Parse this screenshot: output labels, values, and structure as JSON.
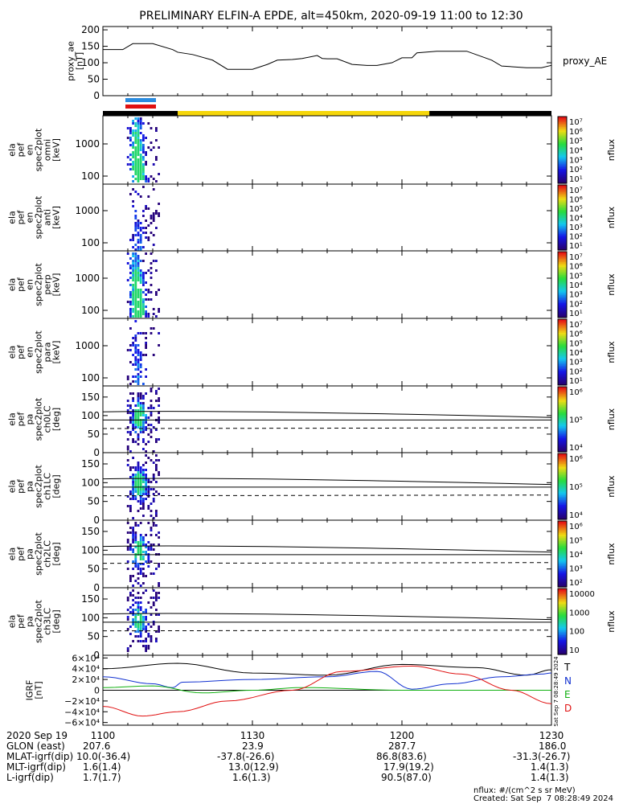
{
  "title": "PRELIMINARY ELFIN-A EPDE, alt=450km, 2020-09-19 11:00 to 12:30",
  "colors": {
    "bar_yellow": "#f5d60a",
    "bar_black": "#000000",
    "blue_mark": "#2a8ce0",
    "red_mark": "#e01010"
  },
  "chart_data": [
    {
      "type": "line",
      "ylabel": "proxy_ae\n[nT]",
      "legend": "proxy_AE",
      "yticks": [
        "0",
        "50",
        "100",
        "150",
        "200"
      ],
      "ylim": [
        0,
        210
      ],
      "x_minutes": [
        0,
        4,
        6,
        10,
        14,
        15,
        18,
        22,
        25,
        30,
        33,
        35,
        38,
        40,
        43,
        44,
        45,
        47,
        50,
        53,
        55,
        58,
        60,
        62,
        63,
        67,
        73,
        78,
        80,
        82,
        85,
        88,
        90
      ],
      "values": [
        140,
        140,
        158,
        158,
        140,
        132,
        125,
        108,
        80,
        80,
        95,
        108,
        110,
        113,
        122,
        113,
        112,
        112,
        95,
        92,
        92,
        100,
        115,
        115,
        130,
        135,
        135,
        108,
        90,
        88,
        85,
        85,
        92
      ]
    },
    {
      "type": "heatmap",
      "ylabel": "ela\npef\nen\nspec2plot\nomni\n[keV]",
      "yticks": [
        "100",
        "1000"
      ],
      "colorbar_label": "nflux",
      "colorbar_ticks": [
        "10¹",
        "10²",
        "10³",
        "10⁴",
        "10⁵",
        "10⁶",
        "10⁷"
      ]
    },
    {
      "type": "heatmap",
      "ylabel": "ela\npef\nen\nspec2plot\nanti\n[keV]",
      "yticks": [
        "100",
        "1000"
      ],
      "colorbar_label": "nflux",
      "colorbar_ticks": [
        "10¹",
        "10²",
        "10³",
        "10⁴",
        "10⁵",
        "10⁶",
        "10⁷"
      ]
    },
    {
      "type": "heatmap",
      "ylabel": "ela\npef\nen\nspec2plot\nperp\n[keV]",
      "yticks": [
        "100",
        "1000"
      ],
      "colorbar_label": "nflux",
      "colorbar_ticks": [
        "10¹",
        "10²",
        "10³",
        "10⁴",
        "10⁵",
        "10⁶",
        "10⁷"
      ]
    },
    {
      "type": "heatmap",
      "ylabel": "ela\npef\nen\nspec2plot\npara\n[keV]",
      "yticks": [
        "100",
        "1000"
      ],
      "colorbar_label": "nflux",
      "colorbar_ticks": [
        "10¹",
        "10²",
        "10³",
        "10⁴",
        "10⁵",
        "10⁶",
        "10⁷"
      ]
    },
    {
      "type": "heatmap",
      "ylabel": "ela\npef\npa\nspec2plot\nch0LC\n[deg]",
      "yticks": [
        "0",
        "50",
        "100",
        "150"
      ],
      "colorbar_label": "nflux",
      "colorbar_ticks": [
        "10⁴",
        "10⁵",
        "10⁶"
      ]
    },
    {
      "type": "heatmap",
      "ylabel": "ela\npef\npa\nspec2plot\nch1LC\n[deg]",
      "yticks": [
        "0",
        "50",
        "100",
        "150"
      ],
      "colorbar_label": "nflux",
      "colorbar_ticks": [
        "10⁴",
        "10⁵",
        "10⁶"
      ]
    },
    {
      "type": "heatmap",
      "ylabel": "ela\npef\npa\nspec2plot\nch2LC\n[deg]",
      "yticks": [
        "0",
        "50",
        "100",
        "150"
      ],
      "colorbar_label": "nflux",
      "colorbar_ticks": [
        "10²",
        "10³",
        "10⁴",
        "10⁵",
        "10⁶"
      ]
    },
    {
      "type": "heatmap",
      "ylabel": "ela\npef\npa\nspec2plot\nch3LC\n[deg]",
      "yticks": [
        "0",
        "50",
        "100",
        "150"
      ],
      "colorbar_label": "nflux",
      "colorbar_ticks": [
        "10",
        "100",
        "1000",
        "10000"
      ]
    },
    {
      "type": "line",
      "ylabel": "IGRF\n[nT]",
      "yticks": [
        "−6×10⁴",
        "−4×10⁴",
        "−2×10⁴",
        "0",
        "2×10⁴",
        "4×10⁴",
        "6×10⁴"
      ],
      "ylim": [
        -65000,
        65000
      ],
      "legend": [
        "T",
        "N",
        "E",
        "D"
      ],
      "series": [
        {
          "name": "T",
          "color": "#000000",
          "x_minutes": [
            0,
            15,
            30,
            45,
            60,
            75,
            85,
            90
          ],
          "values": [
            40000,
            50000,
            32000,
            28000,
            48000,
            42000,
            28000,
            38000
          ]
        },
        {
          "name": "N",
          "color": "#1030d0",
          "x_minutes": [
            0,
            10,
            14,
            16,
            30,
            45,
            55,
            62,
            70,
            80,
            88,
            90
          ],
          "values": [
            25000,
            12000,
            5000,
            15000,
            20000,
            25000,
            35000,
            2000,
            12000,
            25000,
            30000,
            32000
          ]
        },
        {
          "name": "E",
          "color": "#10b010",
          "x_minutes": [
            0,
            10,
            20,
            30,
            40,
            60,
            90
          ],
          "values": [
            5000,
            8000,
            -5000,
            0,
            5000,
            0,
            0
          ]
        },
        {
          "name": "D",
          "color": "#e01010",
          "x_minutes": [
            0,
            8,
            15,
            25,
            38,
            48,
            62,
            72,
            82,
            90
          ],
          "values": [
            -30000,
            -48000,
            -40000,
            -20000,
            0,
            35000,
            45000,
            30000,
            0,
            -25000
          ]
        }
      ]
    }
  ],
  "x_axis": {
    "ticks": [
      "1100",
      "1130",
      "1200",
      "1230"
    ],
    "rows": [
      {
        "label": "2020 Sep 19",
        "values": [
          "",
          "",
          "",
          ""
        ]
      },
      {
        "label": "GLON (east)",
        "values": [
          "207.6",
          "23.9",
          "287.7",
          "186.0"
        ]
      },
      {
        "label": "MLAT-igrf(dip)",
        "values": [
          "10.0(-36.4)",
          "-37.8(-26.6)",
          "86.8(83.6)",
          "-31.3(-26.7)"
        ]
      },
      {
        "label": "MLT-igrf(dip)",
        "values": [
          "1.6(1.4)",
          "13.0(12.9)",
          "17.9(19.2)",
          "1.4(1.3)"
        ]
      },
      {
        "label": "L-igrf(dip)",
        "values": [
          "1.7(1.7)",
          "1.6(1.3)",
          "90.5(87.0)",
          "1.4(1.3)"
        ]
      }
    ]
  },
  "footer": {
    "units": "nflux: #/(cm^2 s sr MeV)",
    "created": "Created: Sat Sep  7 08:28:49 2024"
  },
  "side_stamp": "Sat Sep  7 08:28:49 2024"
}
